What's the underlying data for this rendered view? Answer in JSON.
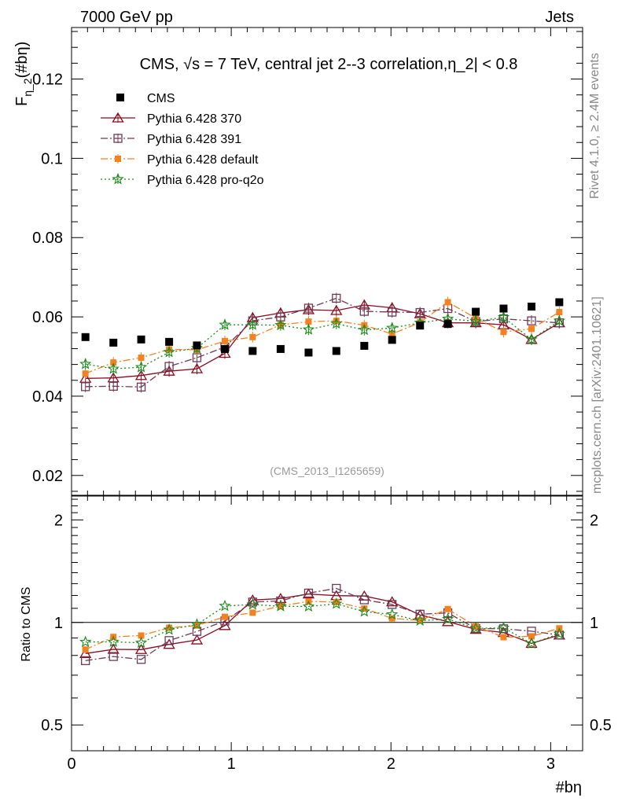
{
  "header": {
    "energy_label": "7000 GeV pp",
    "category_label": "Jets"
  },
  "side_labels": {
    "rivet": "Rivet 4.1.0, ≥ 2.4M events",
    "mcplots": "mcplots.cern.ch [arXiv:2401.10621]"
  },
  "colors": {
    "cms": "#000000",
    "p370": "#8b0a1e",
    "p391": "#6e3a55",
    "pdefault": "#f58220",
    "pq2o": "#1a8a1a",
    "watermark": "#999999"
  },
  "chart_data": [
    {
      "name": "main",
      "type": "scatter",
      "title": "CMS, √s = 7 TeV, central jet 2--3 correlation,η_2| < 0.8",
      "ylabel_main": "F",
      "ylabel_sub": "η_2",
      "ylabel_tail": "(#bη)",
      "xlim": [
        0,
        3.2
      ],
      "ylim": [
        0.015,
        0.133
      ],
      "yticks": [
        0.02,
        0.04,
        0.06,
        0.08,
        0.1,
        0.12
      ],
      "ytick_labels": [
        "0.02",
        "0.04",
        "0.06",
        "0.08",
        "0.1",
        "0.12"
      ],
      "watermark": "(CMS_2013_I1265659)",
      "x": [
        0.087,
        0.262,
        0.436,
        0.611,
        0.785,
        0.96,
        1.134,
        1.309,
        1.484,
        1.658,
        1.833,
        2.007,
        2.182,
        2.356,
        2.531,
        2.705,
        2.88,
        3.054
      ],
      "series": [
        {
          "key": "cms",
          "name": "CMS",
          "style": "data",
          "values": [
            0.0549,
            0.0535,
            0.0543,
            0.0537,
            0.0528,
            0.0519,
            0.0514,
            0.0519,
            0.051,
            0.0514,
            0.0527,
            0.0542,
            0.0578,
            0.0582,
            0.0613,
            0.0621,
            0.0626,
            0.0637
          ]
        },
        {
          "key": "p370",
          "name": "Pythia 6.428 370",
          "style": "solid",
          "marker": "triangle",
          "values": [
            0.0445,
            0.0446,
            0.0452,
            0.0463,
            0.0469,
            0.0508,
            0.0598,
            0.061,
            0.0618,
            0.0616,
            0.063,
            0.0623,
            0.0608,
            0.0585,
            0.0585,
            0.058,
            0.0543,
            0.0585
          ]
        },
        {
          "key": "p391",
          "name": "Pythia 6.428 391",
          "style": "dashdot",
          "marker": "square-open",
          "values": [
            0.0424,
            0.0425,
            0.0423,
            0.0475,
            0.0497,
            0.0524,
            0.059,
            0.06,
            0.0622,
            0.0647,
            0.0614,
            0.0612,
            0.0611,
            0.0621,
            0.0588,
            0.0595,
            0.059,
            0.0585
          ]
        },
        {
          "key": "pdefault",
          "name": "Pythia 6.428 default",
          "style": "dashdot",
          "marker": "square-filled",
          "values": [
            0.0457,
            0.0485,
            0.0497,
            0.0518,
            0.0517,
            0.0539,
            0.0549,
            0.058,
            0.0588,
            0.059,
            0.0579,
            0.0557,
            0.0586,
            0.0637,
            0.0597,
            0.0562,
            0.057,
            0.0612
          ]
        },
        {
          "key": "pq2o",
          "name": "Pythia 6.428 pro-q2o",
          "style": "dotted",
          "marker": "star",
          "values": [
            0.0481,
            0.0469,
            0.0473,
            0.0511,
            0.0521,
            0.058,
            0.058,
            0.0579,
            0.0568,
            0.0583,
            0.0567,
            0.0572,
            0.0585,
            0.0595,
            0.0589,
            0.0599,
            0.0543,
            0.059
          ]
        }
      ]
    },
    {
      "name": "ratio",
      "type": "scatter",
      "ylabel": "Ratio to CMS",
      "xlabel": "#bη",
      "scale": "log",
      "ylim": [
        0.42,
        2.35
      ],
      "yticks": [
        0.5,
        1,
        2
      ],
      "ytick_labels": [
        "0.5",
        "1",
        "2"
      ],
      "xticks": [
        0,
        1,
        2,
        3
      ],
      "xtick_labels": [
        "0",
        "1",
        "2",
        "3"
      ],
      "reference": 1
    }
  ]
}
